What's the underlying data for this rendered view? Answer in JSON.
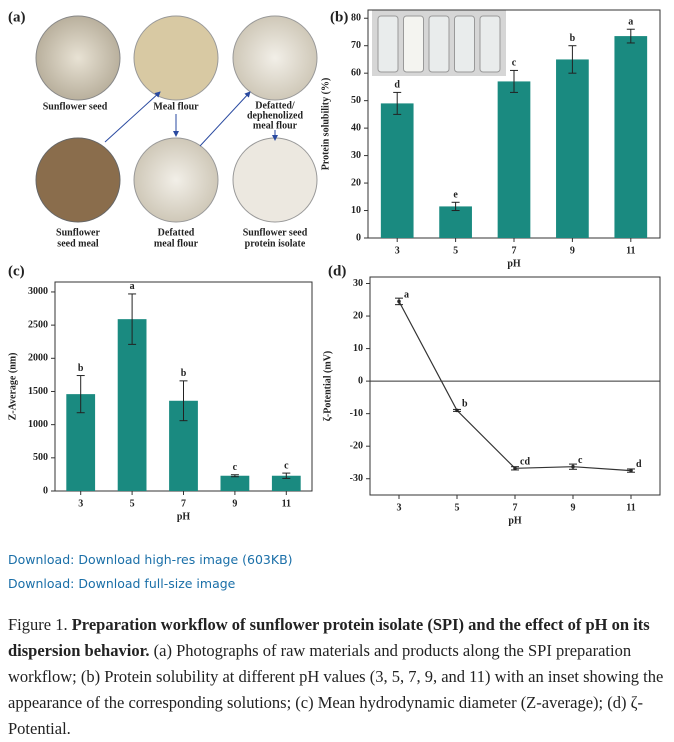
{
  "panel_a": {
    "panel_label": "(a)",
    "labels": [
      "Sunflower seed",
      "Meal flour",
      "Defatted/",
      "dephenolized",
      "meal flour",
      "Sunflower",
      "seed meal",
      "Defatted",
      "meal flour",
      "Sunflower seed",
      "protein isolate"
    ]
  },
  "chart_data": [
    {
      "type": "bar",
      "panel_label": "(b)",
      "ylabel": "Protein solubility (%)",
      "xlabel": "pH",
      "categories": [
        "3",
        "5",
        "7",
        "9",
        "11"
      ],
      "values": [
        49,
        11.5,
        57,
        65,
        73.5
      ],
      "errors": [
        4,
        1.5,
        4,
        5,
        2.5
      ],
      "letters": [
        "d",
        "e",
        "c",
        "b",
        "a"
      ],
      "color": "#1a8a80",
      "ylim": [
        0,
        83
      ],
      "yticks": [
        0,
        10,
        20,
        30,
        40,
        50,
        60,
        70,
        80
      ]
    },
    {
      "type": "bar",
      "panel_label": "(c)",
      "ylabel": "Z-Average (nm)",
      "xlabel": "pH",
      "categories": [
        "3",
        "5",
        "7",
        "9",
        "11"
      ],
      "values": [
        1460,
        2590,
        1360,
        230,
        230
      ],
      "errors": [
        280,
        380,
        300,
        15,
        40
      ],
      "letters": [
        "b",
        "a",
        "b",
        "c",
        "c"
      ],
      "color": "#1a8a80",
      "ylim": [
        0,
        3150
      ],
      "yticks": [
        0,
        500,
        1000,
        1500,
        2000,
        2500,
        3000
      ]
    },
    {
      "type": "line",
      "panel_label": "(d)",
      "ylabel": "ζ-Potential (mV)",
      "xlabel": "pH",
      "categories": [
        "3",
        "5",
        "7",
        "9",
        "11"
      ],
      "values": [
        24.5,
        -9,
        -26.8,
        -26.3,
        -27.5
      ],
      "errors": [
        1,
        0.3,
        0.5,
        0.8,
        0.5
      ],
      "letters": [
        "a",
        "b",
        "cd",
        "c",
        "d"
      ],
      "color": "#333333",
      "ylim": [
        -35,
        32
      ],
      "yticks": [
        -30,
        -20,
        -10,
        0,
        10,
        20,
        30
      ]
    }
  ],
  "links": [
    "Download: Download high-res image (603KB)",
    "Download: Download full-size image"
  ],
  "caption": {
    "label": "Figure 1.",
    "bold": "Preparation workflow of sunflower protein isolate (SPI) and the effect of pH on its dispersion behavior.",
    "text": "(a) Photographs of raw materials and products along the SPI preparation workflow; (b) Protein solubility at different pH values (3, 5, 7, 9, and 11) with an inset showing the appearance of the corresponding solutions; (c) Mean hydrodynamic diameter (Z-average); (d) ζ-Potential."
  }
}
